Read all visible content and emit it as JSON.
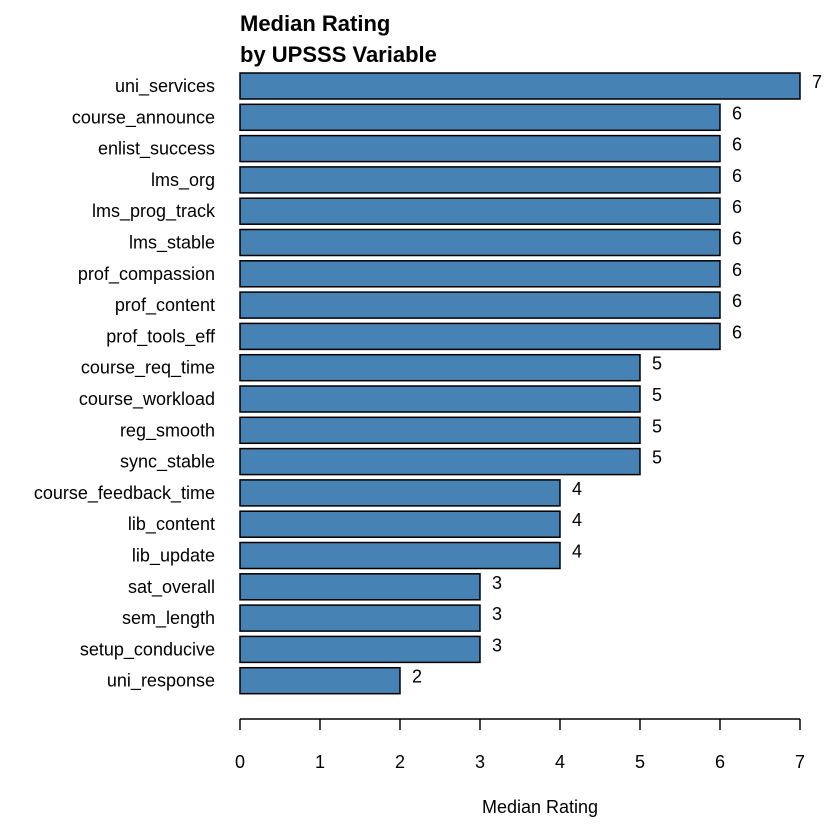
{
  "chart_data": {
    "type": "bar",
    "orientation": "horizontal",
    "title_lines": [
      "Median Rating",
      "by UPSSS Variable"
    ],
    "xlabel": "Median Rating",
    "ylabel": "",
    "xlim": [
      0,
      7
    ],
    "xticks": [
      0,
      1,
      2,
      3,
      4,
      5,
      6,
      7
    ],
    "grid": false,
    "legend": "none",
    "bar_color": "#4682b4",
    "categories": [
      "uni_services",
      "course_announce",
      "enlist_success",
      "lms_org",
      "lms_prog_track",
      "lms_stable",
      "prof_compassion",
      "prof_content",
      "prof_tools_eff",
      "course_req_time",
      "course_workload",
      "reg_smooth",
      "sync_stable",
      "course_feedback_time",
      "lib_content",
      "lib_update",
      "sat_overall",
      "sem_length",
      "setup_conducive",
      "uni_response"
    ],
    "values": [
      7,
      6,
      6,
      6,
      6,
      6,
      6,
      6,
      6,
      5,
      5,
      5,
      5,
      4,
      4,
      4,
      3,
      3,
      3,
      2
    ],
    "value_labels": [
      "7",
      "6",
      "6",
      "6",
      "6",
      "6",
      "6",
      "6",
      "6",
      "5",
      "5",
      "5",
      "5",
      "4",
      "4",
      "4",
      "3",
      "3",
      "3",
      "2"
    ]
  }
}
